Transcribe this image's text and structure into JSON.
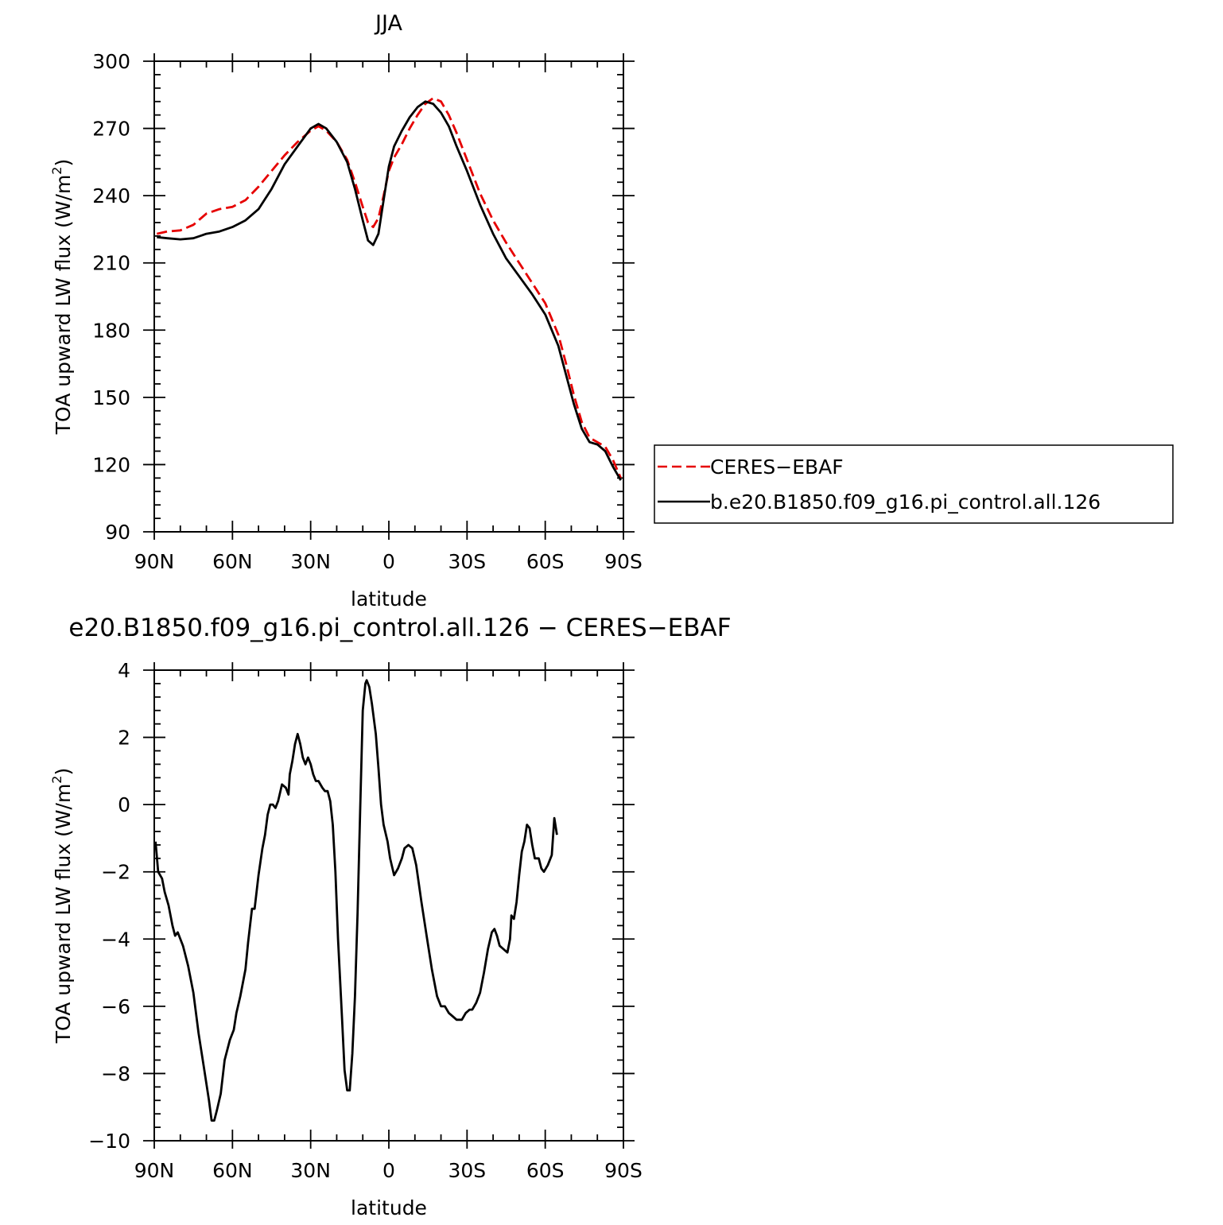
{
  "chart_data": [
    {
      "type": "line",
      "title": "JJA",
      "xlabel": "latitude",
      "ylabel": "TOA upward LW flux (W/m",
      "ylabel_sup": "2",
      "ylabel_close": ")",
      "xlim": [
        90,
        -90
      ],
      "ylim": [
        90,
        300
      ],
      "xticks": [
        90,
        60,
        30,
        0,
        -30,
        -60,
        -90
      ],
      "xtick_labels": [
        "90N",
        "60N",
        "30N",
        "0",
        "30S",
        "60S",
        "90S"
      ],
      "yticks": [
        90,
        120,
        150,
        180,
        210,
        240,
        270,
        300
      ],
      "ytick_labels": [
        "90",
        "120",
        "150",
        "180",
        "210",
        "240",
        "270",
        "300"
      ],
      "legend_position": "right",
      "series": [
        {
          "name": "CERES−EBAF",
          "color": "#e60000",
          "dash": "dashed",
          "points": [
            [
              89,
              223
            ],
            [
              85,
              224
            ],
            [
              80,
              224.5
            ],
            [
              75,
              227
            ],
            [
              70,
              232
            ],
            [
              65,
              234
            ],
            [
              60,
              235
            ],
            [
              55,
              238
            ],
            [
              50,
              244
            ],
            [
              45,
              251
            ],
            [
              40,
              258
            ],
            [
              35,
              264
            ],
            [
              30,
              269
            ],
            [
              27,
              271
            ],
            [
              24,
              269
            ],
            [
              20,
              264
            ],
            [
              16,
              256
            ],
            [
              13,
              246
            ],
            [
              10,
              235
            ],
            [
              8,
              228
            ],
            [
              6,
              226
            ],
            [
              4,
              230
            ],
            [
              2,
              240
            ],
            [
              0,
              251
            ],
            [
              -2,
              257
            ],
            [
              -5,
              263
            ],
            [
              -8,
              270
            ],
            [
              -11,
              276
            ],
            [
              -14,
              281
            ],
            [
              -17,
              283.5
            ],
            [
              -20,
              282
            ],
            [
              -23,
              276
            ],
            [
              -26,
              268
            ],
            [
              -30,
              256
            ],
            [
              -35,
              241
            ],
            [
              -40,
              229
            ],
            [
              -45,
              219
            ],
            [
              -50,
              210
            ],
            [
              -55,
              201
            ],
            [
              -60,
              192
            ],
            [
              -65,
              178
            ],
            [
              -68,
              165
            ],
            [
              -71,
              151
            ],
            [
              -74,
              139
            ],
            [
              -77,
              132
            ],
            [
              -80,
              130
            ],
            [
              -83,
              128
            ],
            [
              -86,
              122
            ],
            [
              -89,
              114
            ]
          ]
        },
        {
          "name": "b.e20.B1850.f09_g16.pi_control.all.126",
          "color": "#000000",
          "dash": "solid",
          "points": [
            [
              89,
              221.5
            ],
            [
              85,
              221
            ],
            [
              80,
              220.5
            ],
            [
              75,
              221
            ],
            [
              70,
              223
            ],
            [
              65,
              224
            ],
            [
              60,
              226
            ],
            [
              55,
              229
            ],
            [
              50,
              234
            ],
            [
              45,
              243
            ],
            [
              40,
              254
            ],
            [
              35,
              262
            ],
            [
              30,
              270
            ],
            [
              27,
              272
            ],
            [
              24,
              270
            ],
            [
              20,
              264
            ],
            [
              16,
              255
            ],
            [
              13,
              243
            ],
            [
              10,
              229
            ],
            [
              8,
              220
            ],
            [
              6,
              218
            ],
            [
              4,
              223
            ],
            [
              2,
              238
            ],
            [
              0,
              253
            ],
            [
              -2,
              262
            ],
            [
              -5,
              269
            ],
            [
              -8,
              275
            ],
            [
              -11,
              279.5
            ],
            [
              -14,
              282
            ],
            [
              -17,
              281
            ],
            [
              -20,
              277
            ],
            [
              -23,
              271
            ],
            [
              -26,
              262
            ],
            [
              -30,
              251
            ],
            [
              -35,
              236
            ],
            [
              -40,
              223
            ],
            [
              -45,
              212
            ],
            [
              -50,
              204
            ],
            [
              -55,
              196
            ],
            [
              -60,
              187
            ],
            [
              -65,
              173
            ],
            [
              -68,
              160
            ],
            [
              -71,
              147
            ],
            [
              -74,
              136
            ],
            [
              -77,
              130
            ],
            [
              -80,
              129
            ],
            [
              -83,
              126
            ],
            [
              -86,
              119
            ],
            [
              -89,
              113
            ]
          ]
        }
      ]
    },
    {
      "type": "line",
      "title": "e20.B1850.f09_g16.pi_control.all.126 − CERES−EBAF",
      "xlabel": "latitude",
      "ylabel": "TOA upward LW flux (W/m",
      "ylabel_sup": "2",
      "ylabel_close": ")",
      "xlim": [
        90,
        -90
      ],
      "ylim": [
        -10,
        4
      ],
      "xticks": [
        90,
        60,
        30,
        0,
        -30,
        -60,
        -90
      ],
      "xtick_labels": [
        "90N",
        "60N",
        "30N",
        "0",
        "30S",
        "60S",
        "90S"
      ],
      "yticks": [
        -10,
        -8,
        -6,
        -4,
        -2,
        0,
        2,
        4
      ],
      "ytick_labels": [
        "−10",
        "−8",
        "−6",
        "−4",
        "−2",
        "0",
        "2",
        "4"
      ],
      "series": [
        {
          "color": "#000000",
          "dash": "solid",
          "points": [
            [
              89.5,
              -1.1
            ],
            [
              88.5,
              -2.0
            ],
            [
              87,
              -2.2
            ],
            [
              86,
              -2.6
            ],
            [
              84.5,
              -3.0
            ],
            [
              83,
              -3.6
            ],
            [
              82,
              -3.9
            ],
            [
              81,
              -3.8
            ],
            [
              79,
              -4.2
            ],
            [
              77,
              -4.8
            ],
            [
              75,
              -5.6
            ],
            [
              73,
              -6.8
            ],
            [
              71,
              -7.8
            ],
            [
              69,
              -8.8
            ],
            [
              68,
              -9.4
            ],
            [
              67,
              -9.4
            ],
            [
              66,
              -9.1
            ],
            [
              64.5,
              -8.6
            ],
            [
              63,
              -7.6
            ],
            [
              61,
              -7.0
            ],
            [
              59.5,
              -6.7
            ],
            [
              58.5,
              -6.2
            ],
            [
              57,
              -5.7
            ],
            [
              55,
              -4.9
            ],
            [
              54,
              -4.1
            ],
            [
              52.5,
              -3.1
            ],
            [
              51.5,
              -3.1
            ],
            [
              50,
              -2.1
            ],
            [
              48.5,
              -1.3
            ],
            [
              47.5,
              -0.9
            ],
            [
              46.5,
              -0.3
            ],
            [
              45.5,
              0.0
            ],
            [
              44.5,
              0.0
            ],
            [
              43.5,
              -0.1
            ],
            [
              42.5,
              0.1
            ],
            [
              41,
              0.6
            ],
            [
              39.5,
              0.5
            ],
            [
              38.5,
              0.3
            ],
            [
              38,
              0.9
            ],
            [
              37,
              1.3
            ],
            [
              36,
              1.8
            ],
            [
              35,
              2.1
            ],
            [
              34,
              1.8
            ],
            [
              33,
              1.4
            ],
            [
              32,
              1.2
            ],
            [
              31,
              1.4
            ],
            [
              30,
              1.2
            ],
            [
              29,
              0.9
            ],
            [
              28,
              0.7
            ],
            [
              27,
              0.7
            ],
            [
              25.5,
              0.5
            ],
            [
              24.5,
              0.4
            ],
            [
              23.5,
              0.4
            ],
            [
              22.5,
              0.1
            ],
            [
              21.5,
              -0.6
            ],
            [
              20.5,
              -2.0
            ],
            [
              19.5,
              -4.0
            ],
            [
              18,
              -6.3
            ],
            [
              17,
              -7.9
            ],
            [
              16,
              -8.5
            ],
            [
              15,
              -8.5
            ],
            [
              14,
              -7.4
            ],
            [
              13,
              -5.7
            ],
            [
              12,
              -3.2
            ],
            [
              11,
              -0.2
            ],
            [
              10,
              2.8
            ],
            [
              9,
              3.6
            ],
            [
              8.5,
              3.7
            ],
            [
              7.5,
              3.5
            ],
            [
              6.5,
              3.0
            ],
            [
              5,
              2.1
            ],
            [
              4,
              1.1
            ],
            [
              3,
              0.0
            ],
            [
              2,
              -0.6
            ],
            [
              0.5,
              -1.1
            ],
            [
              -0.5,
              -1.6
            ],
            [
              -2,
              -2.1
            ],
            [
              -3.5,
              -1.9
            ],
            [
              -5,
              -1.6
            ],
            [
              -6,
              -1.3
            ],
            [
              -7.5,
              -1.2
            ],
            [
              -9,
              -1.3
            ],
            [
              -10.5,
              -1.8
            ],
            [
              -12.5,
              -2.9
            ],
            [
              -14.5,
              -3.9
            ],
            [
              -16.5,
              -4.9
            ],
            [
              -18.5,
              -5.7
            ],
            [
              -20,
              -6.0
            ],
            [
              -21.5,
              -6.0
            ],
            [
              -23,
              -6.2
            ],
            [
              -24.5,
              -6.3
            ],
            [
              -26,
              -6.4
            ],
            [
              -28,
              -6.4
            ],
            [
              -29.5,
              -6.2
            ],
            [
              -31,
              -6.1
            ],
            [
              -32,
              -6.1
            ],
            [
              -33.5,
              -5.9
            ],
            [
              -35,
              -5.6
            ],
            [
              -36.5,
              -5.0
            ],
            [
              -38,
              -4.3
            ],
            [
              -39.5,
              -3.8
            ],
            [
              -40.5,
              -3.7
            ],
            [
              -41.5,
              -3.9
            ],
            [
              -42.5,
              -4.2
            ],
            [
              -44,
              -4.3
            ],
            [
              -45.5,
              -4.4
            ],
            [
              -46.5,
              -4.0
            ],
            [
              -47,
              -3.3
            ],
            [
              -48,
              -3.4
            ],
            [
              -49,
              -2.9
            ],
            [
              -50,
              -2.1
            ],
            [
              -51,
              -1.4
            ],
            [
              -52,
              -1.1
            ],
            [
              -53,
              -0.6
            ],
            [
              -54,
              -0.7
            ],
            [
              -55,
              -1.2
            ],
            [
              -56,
              -1.6
            ],
            [
              -57.5,
              -1.6
            ],
            [
              -58.5,
              -1.9
            ],
            [
              -59.5,
              -2.0
            ],
            [
              -61,
              -1.8
            ],
            [
              -62.5,
              -1.5
            ],
            [
              -63.5,
              -0.4
            ],
            [
              -64.5,
              -0.9
            ]
          ]
        }
      ]
    }
  ]
}
